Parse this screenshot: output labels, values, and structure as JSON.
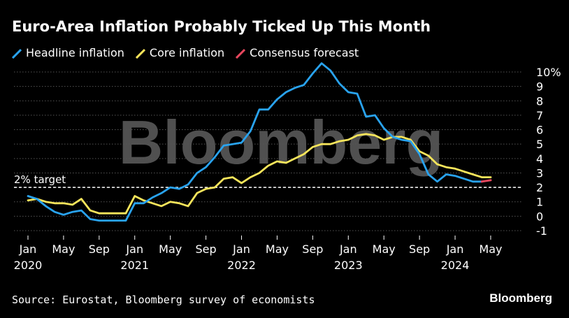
{
  "title": "Euro-Area Inflation Probably Ticked Up This Month",
  "source": "Source: Eurostat, Bloomberg survey of economists",
  "brand": "Bloomberg",
  "watermark": "Bloomberg",
  "target_label": "2% target",
  "colors": {
    "headline": "#29a3ef",
    "core": "#f7e55b",
    "consensus": "#e8475e",
    "grid": "#555555",
    "target": "#ffffff"
  },
  "chart_data": {
    "type": "line",
    "title": "Euro-Area Inflation Probably Ticked Up This Month",
    "ylim": [
      -1,
      10
    ],
    "yticks": [
      -1,
      0,
      1,
      2,
      3,
      4,
      5,
      6,
      7,
      8,
      9,
      10
    ],
    "ytick_labels": [
      "-1",
      "0",
      "1",
      "2",
      "3",
      "4",
      "5",
      "6",
      "7",
      "8",
      "9",
      "10%"
    ],
    "x_start": "2020-01",
    "xticks": [
      {
        "x": "2020-01",
        "label": "Jan",
        "year": "2020"
      },
      {
        "x": "2020-05",
        "label": "May",
        "year": ""
      },
      {
        "x": "2020-09",
        "label": "Sep",
        "year": ""
      },
      {
        "x": "2021-01",
        "label": "Jan",
        "year": "2021"
      },
      {
        "x": "2021-05",
        "label": "May",
        "year": ""
      },
      {
        "x": "2021-09",
        "label": "Sep",
        "year": ""
      },
      {
        "x": "2022-01",
        "label": "Jan",
        "year": "2022"
      },
      {
        "x": "2022-05",
        "label": "May",
        "year": ""
      },
      {
        "x": "2022-09",
        "label": "Sep",
        "year": ""
      },
      {
        "x": "2023-01",
        "label": "Jan",
        "year": "2023"
      },
      {
        "x": "2023-05",
        "label": "May",
        "year": ""
      },
      {
        "x": "2023-09",
        "label": "Sep",
        "year": ""
      },
      {
        "x": "2024-01",
        "label": "Jan",
        "year": "2024"
      },
      {
        "x": "2024-05",
        "label": "May",
        "year": ""
      }
    ],
    "reference_line": {
      "y": 2,
      "label": "2% target"
    },
    "series": [
      {
        "name": "Headline inflation",
        "color": "#29a3ef",
        "x_start": "2020-01",
        "values": [
          1.4,
          1.2,
          0.7,
          0.3,
          0.1,
          0.3,
          0.4,
          -0.2,
          -0.3,
          -0.3,
          -0.3,
          -0.3,
          0.9,
          0.9,
          1.3,
          1.6,
          2.0,
          1.9,
          2.2,
          3.0,
          3.4,
          4.1,
          4.9,
          5.0,
          5.1,
          5.9,
          7.4,
          7.4,
          8.1,
          8.6,
          8.9,
          9.1,
          9.9,
          10.6,
          10.1,
          9.2,
          8.6,
          8.5,
          6.9,
          7.0,
          6.1,
          5.5,
          5.3,
          5.2,
          4.3,
          2.9,
          2.4,
          2.9,
          2.8,
          2.6,
          2.4,
          2.4
        ]
      },
      {
        "name": "Core inflation",
        "color": "#f7e55b",
        "x_start": "2020-01",
        "values": [
          1.1,
          1.2,
          1.0,
          0.9,
          0.9,
          0.8,
          1.2,
          0.4,
          0.2,
          0.2,
          0.2,
          0.2,
          1.4,
          1.1,
          0.9,
          0.7,
          1.0,
          0.9,
          0.7,
          1.6,
          1.9,
          2.0,
          2.6,
          2.7,
          2.3,
          2.7,
          3.0,
          3.5,
          3.8,
          3.7,
          4.0,
          4.3,
          4.8,
          5.0,
          5.0,
          5.2,
          5.3,
          5.6,
          5.7,
          5.6,
          5.3,
          5.5,
          5.5,
          5.3,
          4.5,
          4.2,
          3.6,
          3.4,
          3.3,
          3.1,
          2.9,
          2.7,
          2.7
        ]
      },
      {
        "name": "Consensus forecast",
        "color": "#e8475e",
        "x_start": "2024-04",
        "values": [
          2.4,
          2.5
        ]
      }
    ]
  }
}
